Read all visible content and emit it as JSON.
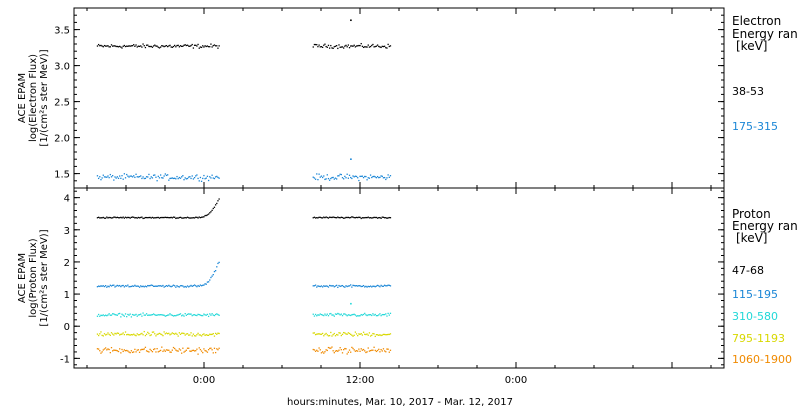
{
  "xlabel": "hours:minutes, Mar. 10, 2017 - Mar. 12, 2017",
  "chart_data": [
    {
      "type": "scatter",
      "panel": "electron",
      "ylabel": [
        "ACE EPAM",
        "log(Electron Flux)",
        "[1/(cm²s ster MeV)]"
      ],
      "legend_title": [
        "Electron",
        "Energy ran",
        "[keV]"
      ],
      "x_unit": "hours since 00:00 Mar. 10, 2017",
      "xlim": [
        -10,
        40
      ],
      "ylim": [
        1.3,
        3.8
      ],
      "yticks": [
        1.5,
        2.0,
        2.5,
        3.0,
        3.5
      ],
      "ytick_labels": [
        "1.5",
        "2.0",
        "2.5",
        "3.0",
        "3.5"
      ],
      "grid": false,
      "legend_position": "right",
      "series": [
        {
          "name": "38-53",
          "color": "#000000",
          "mean": 3.27,
          "spread": 0.04,
          "segments": [
            [
              -8.2,
              1.2
            ],
            [
              8.4,
              14.4
            ]
          ],
          "outliers": [
            [
              11.3,
              3.63
            ]
          ]
        },
        {
          "name": "175-315",
          "color": "#1a86d6",
          "mean": 1.45,
          "spread": 0.06,
          "segments": [
            [
              -8.2,
              1.2
            ],
            [
              8.4,
              14.4
            ]
          ],
          "outliers": [
            [
              11.3,
              1.7
            ]
          ]
        }
      ]
    },
    {
      "type": "scatter",
      "panel": "proton",
      "ylabel": [
        "ACE EPAM",
        "log(Proton Flux)",
        "[1/(cm²s ster MeV)]"
      ],
      "legend_title": [
        "Proton",
        "Energy ran",
        "[keV]"
      ],
      "x_unit": "hours since 00:00 Mar. 10, 2017",
      "xlim": [
        -10,
        40
      ],
      "ylim": [
        -1.3,
        4.3
      ],
      "yticks": [
        -1,
        0,
        1,
        2,
        3,
        4
      ],
      "ytick_labels": [
        "-1",
        "0",
        "1",
        "2",
        "3",
        "4"
      ],
      "grid": false,
      "legend_position": "right",
      "series": [
        {
          "name": "47-68",
          "color": "#000000",
          "mean": 3.38,
          "spread": 0.03,
          "segments": [
            [
              -8.2,
              1.2
            ],
            [
              8.4,
              14.4
            ]
          ],
          "rise": {
            "start": -0.3,
            "end": 1.2,
            "to": 4.0
          }
        },
        {
          "name": "115-195",
          "color": "#1a86d6",
          "mean": 1.25,
          "spread": 0.05,
          "segments": [
            [
              -8.2,
              1.2
            ],
            [
              8.4,
              14.4
            ]
          ],
          "rise": {
            "start": -0.3,
            "end": 1.2,
            "to": 2.05
          }
        },
        {
          "name": "310-580",
          "color": "#22d8d8",
          "mean": 0.35,
          "spread": 0.07,
          "segments": [
            [
              -8.2,
              1.2
            ],
            [
              8.4,
              14.4
            ]
          ],
          "outliers": [
            [
              11.3,
              0.7
            ]
          ]
        },
        {
          "name": "795-1193",
          "color": "#d8d800",
          "mean": -0.25,
          "spread": 0.1,
          "segments": [
            [
              -8.2,
              1.2
            ],
            [
              8.4,
              14.4
            ]
          ]
        },
        {
          "name": "1060-1900",
          "color": "#f08a00",
          "mean": -0.75,
          "spread": 0.14,
          "segments": [
            [
              -8.2,
              1.2
            ],
            [
              8.4,
              14.4
            ]
          ]
        }
      ]
    }
  ],
  "x_ticks": {
    "major": [
      0,
      12,
      24
    ],
    "major_labels": [
      "0:00",
      "12:00",
      "0:00"
    ]
  }
}
